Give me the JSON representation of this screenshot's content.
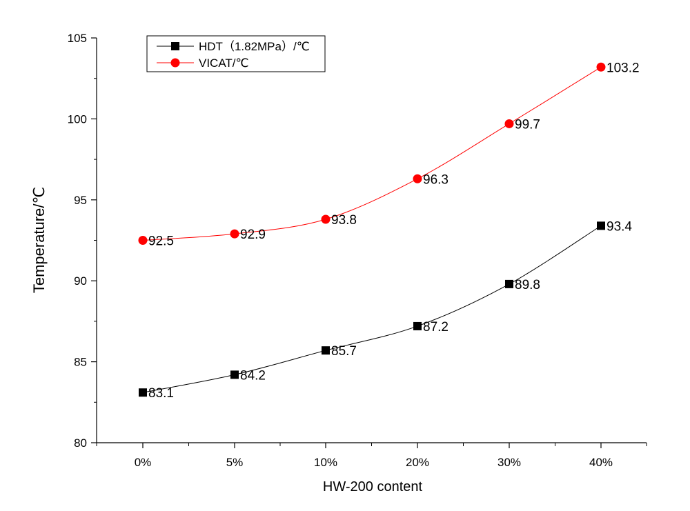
{
  "chart_data": {
    "type": "line",
    "categories": [
      "0%",
      "5%",
      "10%",
      "20%",
      "30%",
      "40%"
    ],
    "xlabel": "HW-200 content",
    "ylabel": "Temperature/℃",
    "ylim": [
      80,
      105
    ],
    "yticks": [
      80,
      85,
      90,
      95,
      100,
      105
    ],
    "grid": false,
    "legend_position": "top-left",
    "series": [
      {
        "name": "HDT（1.82MPa）/℃",
        "values": [
          83.1,
          84.2,
          85.7,
          87.2,
          89.8,
          93.4
        ],
        "labels": [
          "83.1",
          "84.2",
          "85.7",
          "87.2",
          "89.8",
          "93.4"
        ],
        "color": "#000000",
        "marker": "square"
      },
      {
        "name": "VICAT/℃",
        "values": [
          92.5,
          92.9,
          93.8,
          96.3,
          99.7,
          103.2
        ],
        "labels": [
          "92.5",
          "92.9",
          "93.8",
          "96.3",
          "99.7",
          "103.2"
        ],
        "color": "#ff0000",
        "marker": "circle"
      }
    ]
  }
}
